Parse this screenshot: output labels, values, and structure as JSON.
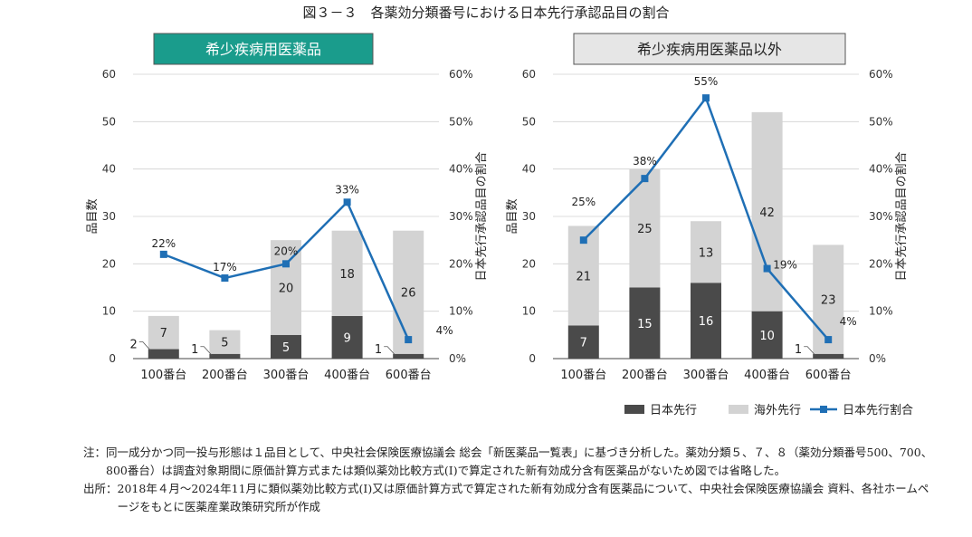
{
  "figure_title": "図３－３　各薬効分類番号における日本先行承認品目の割合",
  "chart_data": [
    {
      "type": "bar",
      "title": "希少疾病用医薬品",
      "title_bg": "#1a9c8c",
      "title_color": "#ffffff",
      "categories": [
        "100番台",
        "200番台",
        "300番台",
        "400番台",
        "600番台"
      ],
      "ylabel": "品目数",
      "y2label": "日本先行承認品目の割合",
      "ylim": [
        0,
        60
      ],
      "y2lim": [
        0,
        60
      ],
      "yticks": [
        "0",
        "10",
        "20",
        "30",
        "40",
        "50",
        "60"
      ],
      "y2ticks": [
        "0%",
        "10%",
        "20%",
        "30%",
        "40%",
        "50%",
        "60%"
      ],
      "stacked": true,
      "series": [
        {
          "name": "日本先行",
          "color": "#4a4a4a",
          "values": [
            2,
            1,
            5,
            9,
            1
          ],
          "labels": [
            "2",
            "1",
            "5",
            "9",
            "1"
          ]
        },
        {
          "name": "海外先行",
          "color": "#d3d3d3",
          "values": [
            7,
            5,
            20,
            18,
            26
          ],
          "labels": [
            "7",
            "5",
            "20",
            "18",
            "26"
          ]
        },
        {
          "name": "日本先行割合",
          "type": "line",
          "axis": "right",
          "color": "#1f6fb5",
          "values": [
            22,
            17,
            20,
            33,
            4
          ],
          "labels": [
            "22%",
            "17%",
            "20%",
            "33%",
            "4%"
          ]
        }
      ]
    },
    {
      "type": "bar",
      "title": "希少疾病用医薬品以外",
      "title_bg": "#e6e6e6",
      "title_color": "#222222",
      "categories": [
        "100番台",
        "200番台",
        "300番台",
        "400番台",
        "600番台"
      ],
      "ylabel": "品目数",
      "y2label": "日本先行承認品目の割合",
      "ylim": [
        0,
        60
      ],
      "y2lim": [
        0,
        60
      ],
      "yticks": [
        "0",
        "10",
        "20",
        "30",
        "40",
        "50",
        "60"
      ],
      "y2ticks": [
        "0%",
        "10%",
        "20%",
        "30%",
        "40%",
        "50%",
        "60%"
      ],
      "stacked": true,
      "series": [
        {
          "name": "日本先行",
          "color": "#4a4a4a",
          "values": [
            7,
            15,
            16,
            10,
            1
          ],
          "labels": [
            "7",
            "15",
            "16",
            "10",
            "1"
          ]
        },
        {
          "name": "海外先行",
          "color": "#d3d3d3",
          "values": [
            21,
            25,
            13,
            42,
            23
          ],
          "labels": [
            "21",
            "25",
            "13",
            "42",
            "23"
          ]
        },
        {
          "name": "日本先行割合",
          "type": "line",
          "axis": "right",
          "color": "#1f6fb5",
          "values": [
            25,
            38,
            55,
            19,
            4
          ],
          "labels": [
            "25%",
            "38%",
            "55%",
            "19%",
            "4%"
          ]
        }
      ]
    }
  ],
  "legend": [
    "日本先行",
    "海外先行",
    "日本先行割合"
  ],
  "notes": [
    {
      "label": "注：",
      "text": "同一成分かつ同一投与形態は１品目として、中央社会保険医療協議会 総会「新医薬品一覧表」に基づき分析した。薬効分類５、７、８（薬効分類番号500、700、800番台）は調査対象期間に原価計算方式または類似薬効比較方式(Ⅰ)で算定された新有効成分含有医薬品がないため図では省略した。"
    },
    {
      "label": "出所：",
      "text": "2018年４月～2024年11月に類似薬効比較方式(Ⅰ)又は原価計算方式で算定された新有効成分含有医薬品について、中央社会保険医療協議会 資料、各社ホームページをもとに医薬産業政策研究所が作成"
    }
  ]
}
